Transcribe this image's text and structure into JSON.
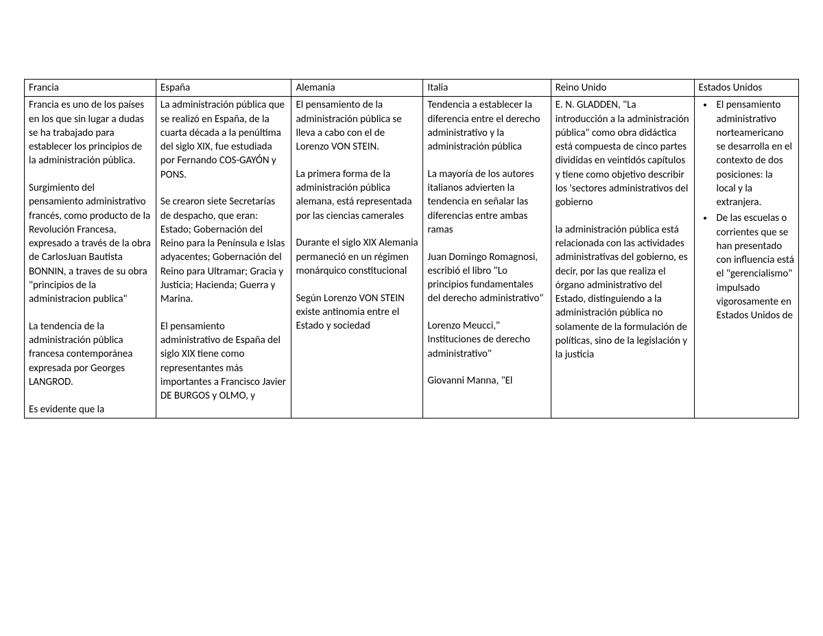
{
  "table": {
    "headers": [
      "Francia",
      "España",
      "Alemania",
      "Italia",
      "Reino Unido",
      "Estados Unidos"
    ],
    "cells": {
      "francia": [
        "Francia es uno de los países en los que sin lugar a dudas se ha trabajado para establecer los principios de la administración pública.",
        "Surgimiento del pensamiento administrativo francés, como producto de la Revolución Francesa, expresado a través de la obra de CarlosJuan Bautista BONNIN, a traves  de su obra \"principios de la administracion publica\"",
        "La tendencia de la administración pública francesa contemporánea expresada por Georges LANGROD.",
        "Es evidente que la"
      ],
      "espana": [
        "La administración pública que se realizó en España, de la cuarta década a la penúltima del siglo XIX, fue estudiada por Fernando COS-GAYÓN y PONS.",
        "Se crearon siete Secretarías de despacho, que eran: Estado; Gobernación del Reino para la Península e Islas adyacentes; Gobernación del Reino para Ultramar; Gracia y Justicia; Hacienda; Guerra y Marina.",
        "El pensamiento administrativo de España del siglo XIX tiene como representantes más importantes a Francisco Javier DE BURGOS y OLMO, y"
      ],
      "alemania": [
        "El pensamiento de la administración pública se lleva a cabo con el de Lorenzo VON STEIN.",
        "La primera forma de la administración pública alemana, está representada por las ciencias camerales",
        "Durante el siglo XIX Alemania permaneció en un régimen monárquico constitucional",
        "Según Lorenzo VON STEIN existe antinomia entre el Estado y sociedad"
      ],
      "italia": [
        "Tendencia a establecer la diferencia entre el derecho administrativo y la administración pública",
        "La mayoría de los autores italianos advierten la tendencia en señalar las diferencias entre ambas ramas",
        "Juan Domingo Romagnosi, escribió el libro \"Lo principios fundamentales del derecho administrativo\"",
        "Lorenzo Meucci,\" Instituciones de derecho administrativo\"",
        "Giovanni Manna, \"El"
      ],
      "reino_unido": [
        "E. N. GLADDEN, \"La introducción a la administración pública\" como obra didáctica está compuesta de cinco partes divididas en veintidós capítulos y tiene como objetivo describir los 'sectores administrativos del gobierno",
        "la administración pública está relacionada con las actividades administrativas del gobierno, es decir, por las que realiza el órgano administrativo del Estado, distinguiendo a la administración pública no solamente de la formulación de políticas, sino de la legislación y la justicia"
      ],
      "estados_unidos_bullets": [
        "El pensamiento administrativo norteamericano se desarrolla en el contexto de dos posiciones: la local y la extranjera.",
        "De las escuelas o corrientes que se han presentado con influencia está el \"gerencialismo\" impulsado vigorosamente en Estados Unidos de"
      ]
    }
  },
  "style": {
    "background_color": "#ffffff",
    "text_color": "#000000",
    "border_color": "#000000",
    "font_family": "Calibri",
    "font_size_pt": 11
  }
}
